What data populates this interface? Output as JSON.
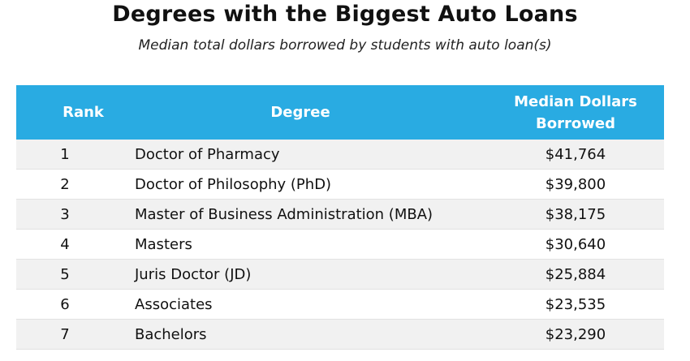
{
  "header": {
    "title": "Degrees with the Biggest Auto Loans",
    "subtitle": "Median total dollars borrowed by students with auto loan(s)"
  },
  "table": {
    "columns": [
      "Rank",
      "Degree",
      "Median Dollars Borrowed"
    ],
    "rows": [
      [
        "1",
        "Doctor of Pharmacy",
        "$41,764"
      ],
      [
        "2",
        "Doctor of Philosophy (PhD)",
        "$39,800"
      ],
      [
        "3",
        "Master of Business Administration (MBA)",
        "$38,175"
      ],
      [
        "4",
        "Masters",
        "$30,640"
      ],
      [
        "5",
        "Juris Doctor (JD)",
        "$25,884"
      ],
      [
        "6",
        "Associates",
        "$23,535"
      ],
      [
        "7",
        "Bachelors",
        "$23,290"
      ]
    ]
  }
}
